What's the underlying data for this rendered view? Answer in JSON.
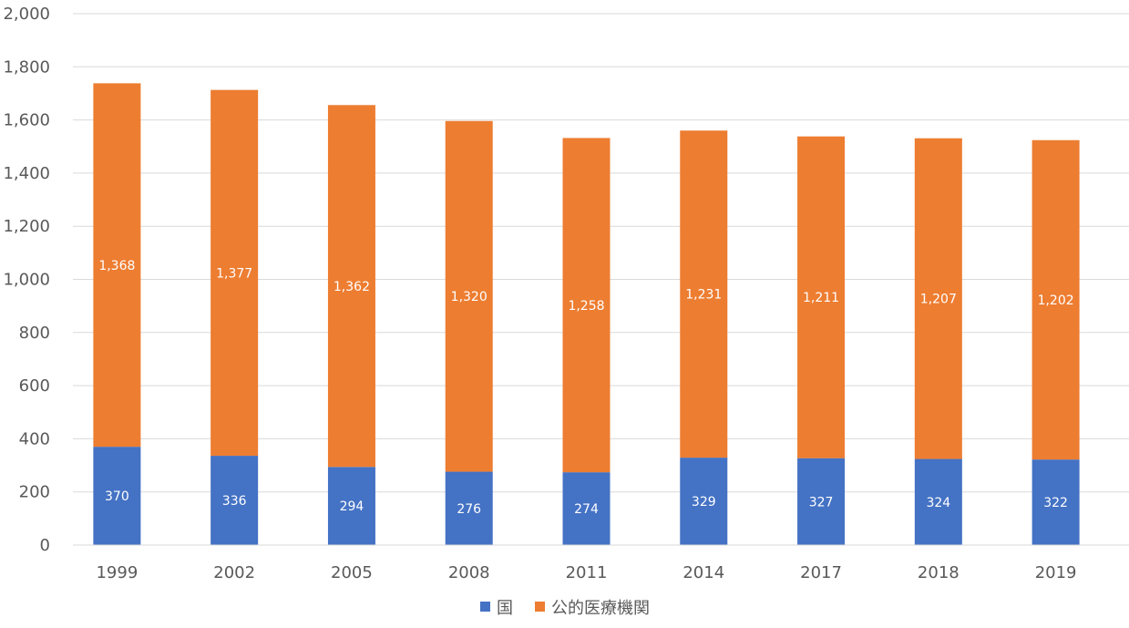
{
  "chart_data": {
    "type": "bar",
    "stacked": true,
    "categories": [
      "1999",
      "2002",
      "2005",
      "2008",
      "2011",
      "2014",
      "2017",
      "2018",
      "2019"
    ],
    "series": [
      {
        "name": "国",
        "color": "#4472c4",
        "values": [
          370,
          336,
          294,
          276,
          274,
          329,
          327,
          324,
          322
        ]
      },
      {
        "name": "公的医療機関",
        "color": "#ed7d31",
        "values": [
          1368,
          1377,
          1362,
          1320,
          1258,
          1231,
          1211,
          1207,
          1202
        ]
      }
    ],
    "ylim": [
      0,
      2000
    ],
    "yticks": [
      "0",
      "200",
      "400",
      "600",
      "800",
      "1,000",
      "1,200",
      "1,400",
      "1,600",
      "1,800",
      "2,000"
    ],
    "grid": true,
    "legend_position": "bottom"
  }
}
